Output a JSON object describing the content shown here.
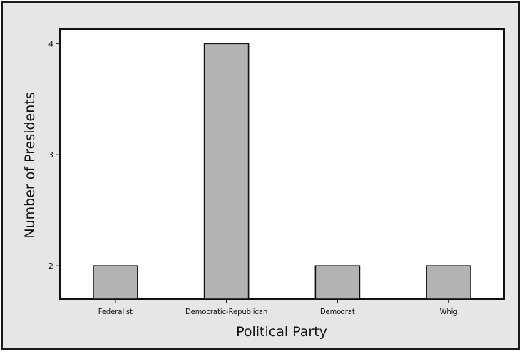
{
  "chart_data": {
    "type": "bar",
    "categories": [
      "Federalist",
      "Democratic-Republican",
      "Democrat",
      "Whig"
    ],
    "values": [
      2,
      4,
      2,
      2
    ],
    "xlabel": "Political Party",
    "ylabel": "Number of Presidents",
    "yticks": [
      "2",
      "3",
      "4"
    ],
    "ylim": [
      1.7,
      4.13
    ],
    "grid": false,
    "colors": {
      "bar_fill": "#b3b3b3",
      "bar_stroke": "#111111",
      "frame_background": "#e6e6e6",
      "plot_background": "#ffffff"
    }
  }
}
